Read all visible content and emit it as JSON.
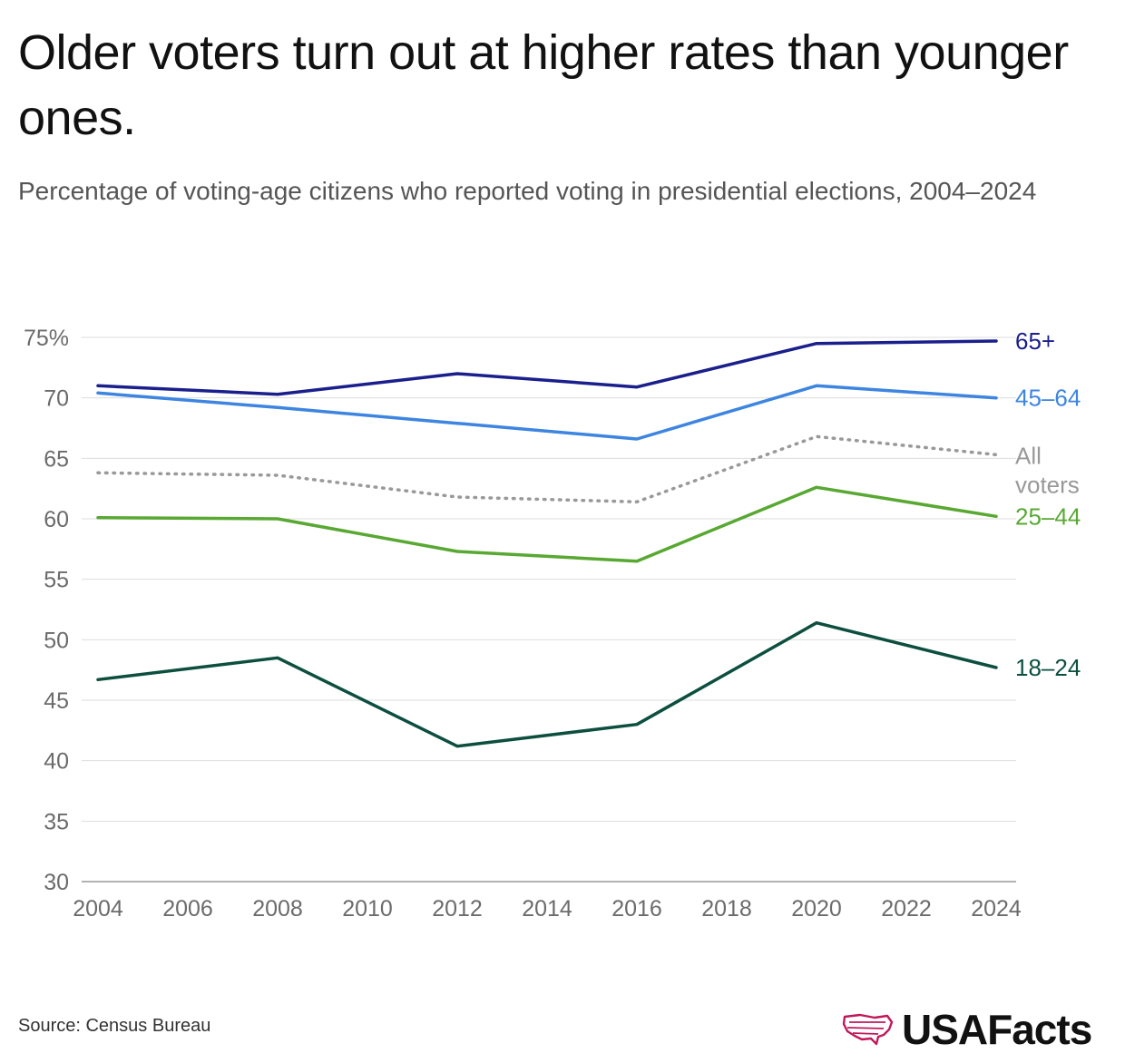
{
  "title": "Older voters turn out at higher rates than younger ones.",
  "subtitle": "Percentage of voting-age citizens who reported voting in presidential elections, 2004–2024",
  "source": "Source: Census Bureau",
  "brand": {
    "name": "USAFacts",
    "accent_color": "#c2185b"
  },
  "chart_data": {
    "type": "line",
    "x": [
      2004,
      2008,
      2012,
      2016,
      2020,
      2024
    ],
    "x_ticks": [
      "2004",
      "2006",
      "2008",
      "2010",
      "2012",
      "2014",
      "2016",
      "2018",
      "2020",
      "2022",
      "2024"
    ],
    "y_ticks": [
      "30",
      "35",
      "40",
      "45",
      "50",
      "55",
      "60",
      "65",
      "70",
      "75%"
    ],
    "xlim": [
      2004,
      2024
    ],
    "ylim": [
      30,
      75
    ],
    "grid": "horizontal",
    "legend": "inline labels at line ends",
    "series": [
      {
        "name": "65+",
        "color": "#1a1f8c",
        "style": "solid",
        "values": [
          71.0,
          70.3,
          72.0,
          70.9,
          74.5,
          74.7
        ]
      },
      {
        "name": "45–64",
        "color": "#3d85e0",
        "style": "solid",
        "values": [
          70.4,
          69.2,
          67.9,
          66.6,
          71.0,
          70.0
        ]
      },
      {
        "name": "All voters",
        "label_lines": [
          "All",
          "voters"
        ],
        "color": "#999999",
        "style": "dotted",
        "values": [
          63.8,
          63.6,
          61.8,
          61.4,
          66.8,
          65.3
        ]
      },
      {
        "name": "25–44",
        "color": "#58a832",
        "style": "solid",
        "values": [
          60.1,
          60.0,
          57.3,
          56.5,
          62.6,
          60.2
        ]
      },
      {
        "name": "18–24",
        "color": "#0d4f3f",
        "style": "solid",
        "values": [
          46.7,
          48.5,
          41.2,
          43.0,
          51.4,
          47.7
        ]
      }
    ]
  }
}
